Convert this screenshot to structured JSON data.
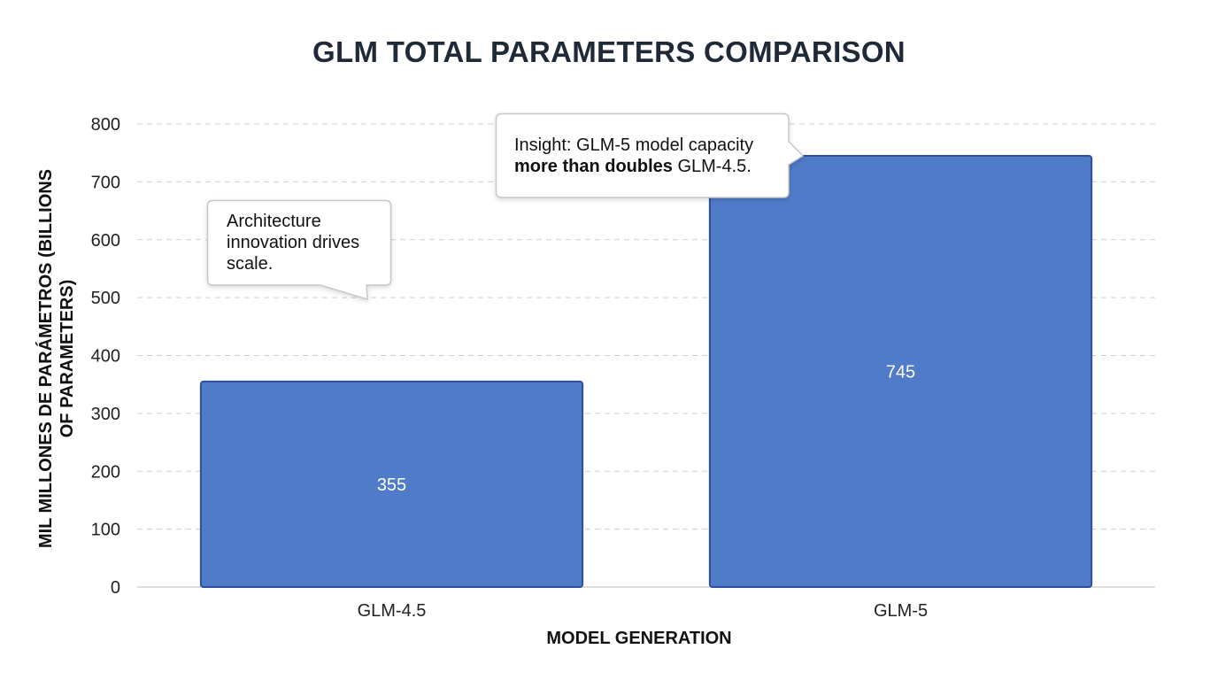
{
  "chart_data": {
    "type": "bar",
    "title": "GLM TOTAL PARAMETERS COMPARISON",
    "xlabel": "MODEL GENERATION",
    "ylabel_line1": "MIL MILLONES DE PARÁMETROS (BILLIONS",
    "ylabel_line2": "OF PARAMETERS)",
    "categories": [
      "GLM-4.5",
      "GLM-5"
    ],
    "values": [
      355,
      745
    ],
    "data_labels": [
      "355",
      "745"
    ],
    "ylim": [
      0,
      800
    ],
    "yticks": [
      0,
      100,
      200,
      300,
      400,
      500,
      600,
      700,
      800
    ],
    "grid": true,
    "bar_color": "#4f7bc8",
    "bar_border_color": "#2f4f9a",
    "annotations": [
      {
        "lines": [
          "Architecture",
          "innovation drives",
          "scale."
        ]
      },
      {
        "line1": "Insight: GLM-5 model capacity",
        "line2_bold": "more than doubles",
        "line2_rest": " GLM-4.5."
      }
    ]
  }
}
